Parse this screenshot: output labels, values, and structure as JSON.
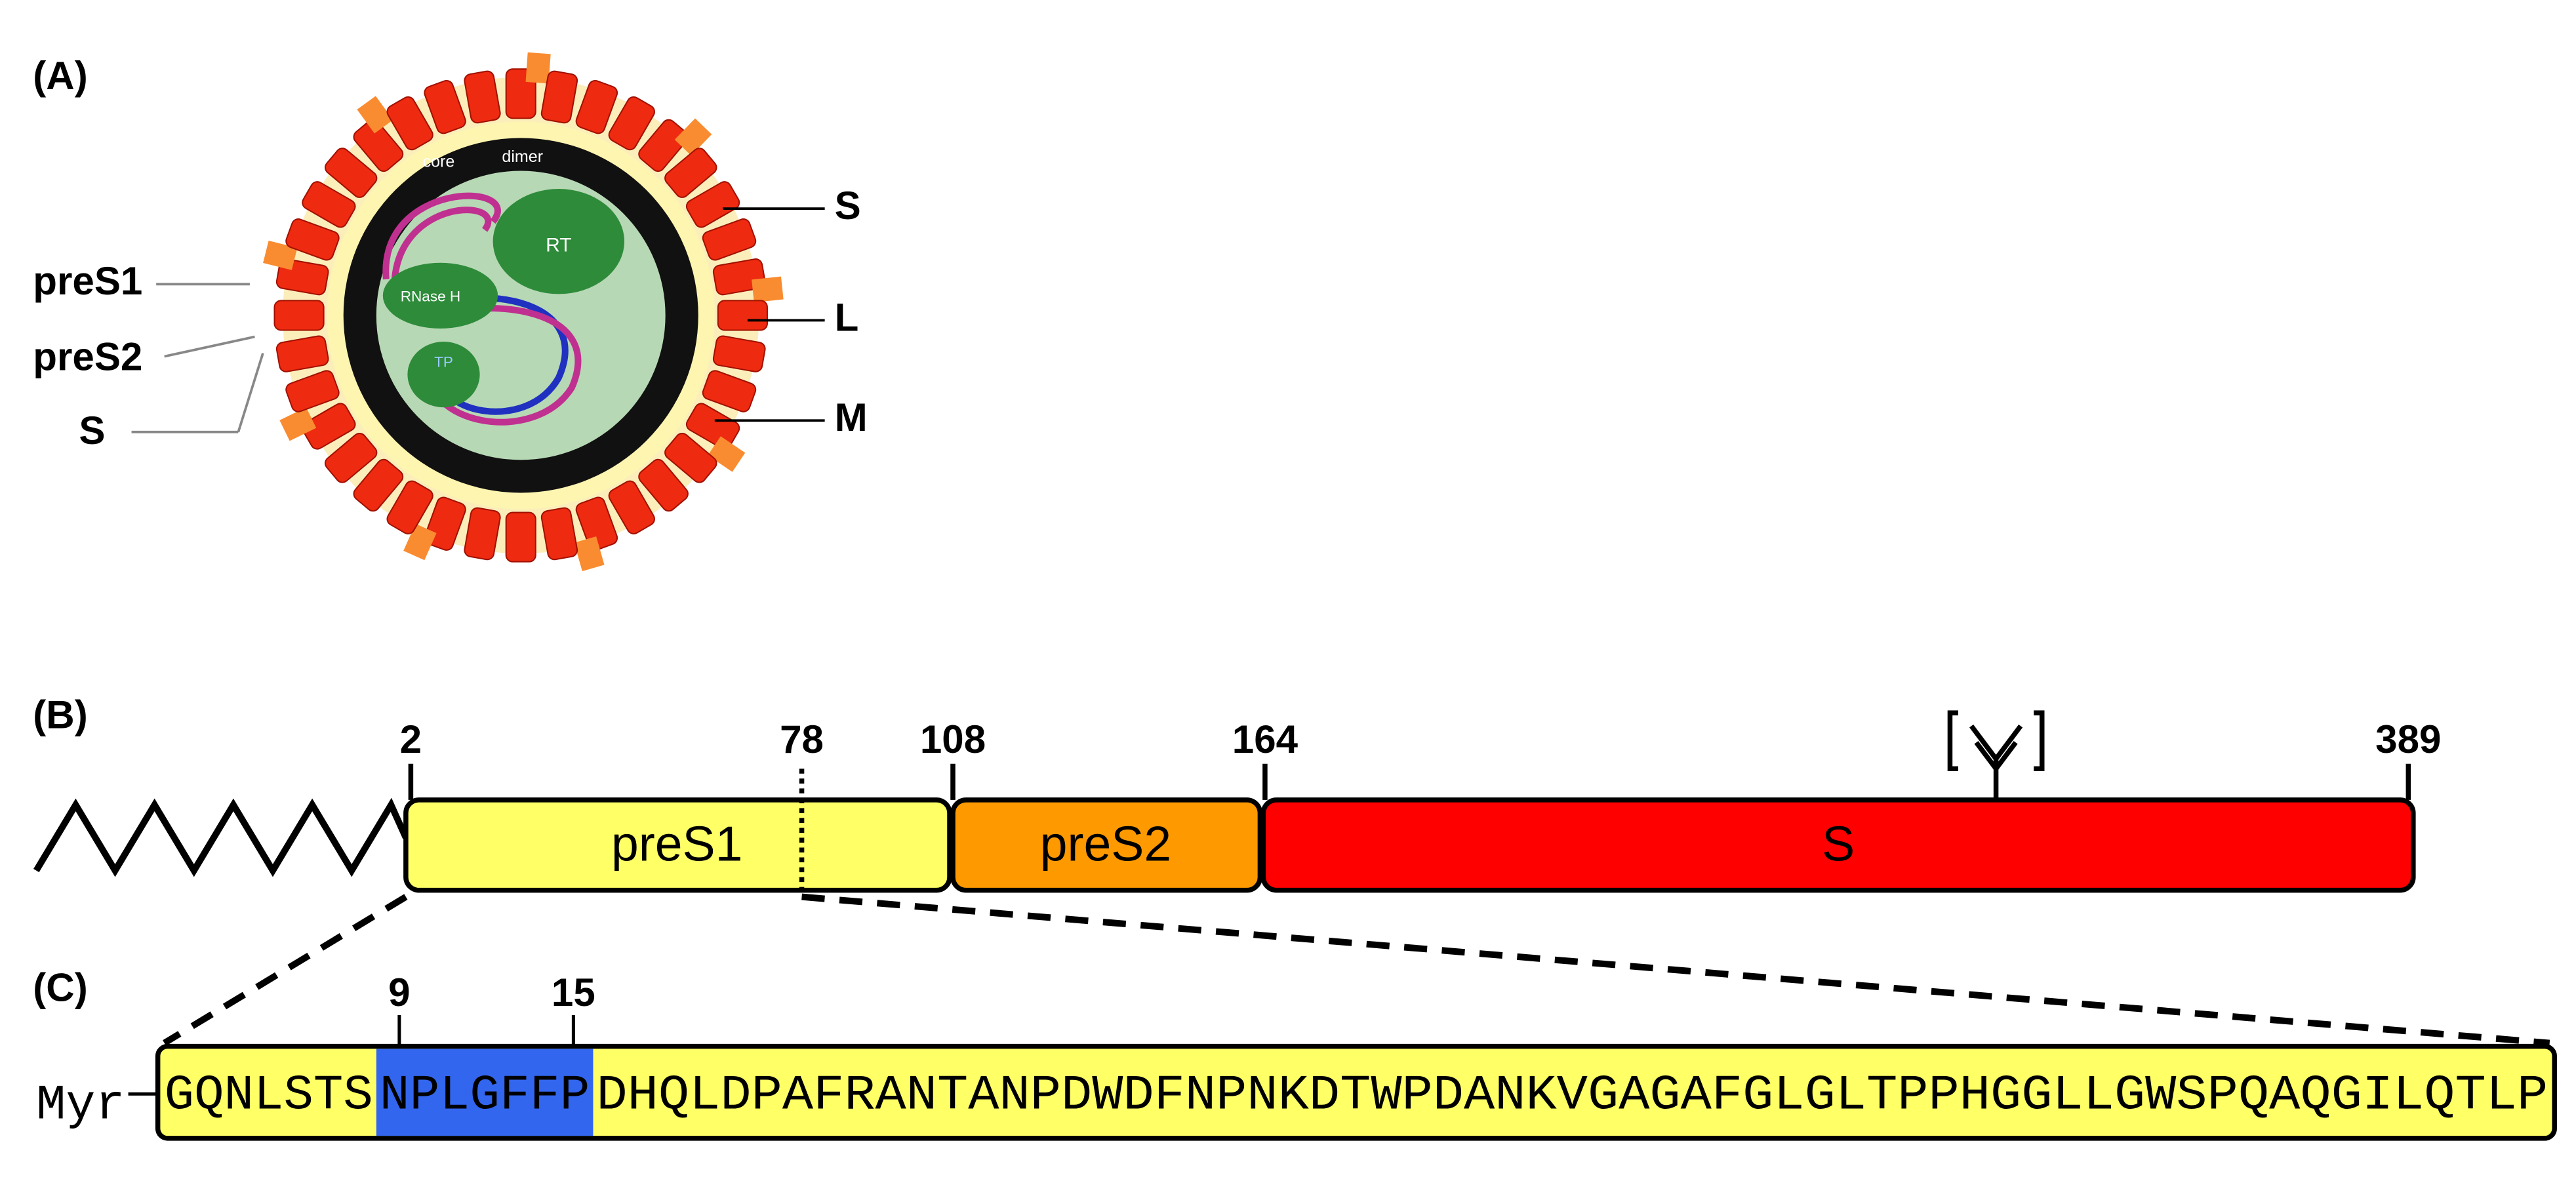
{
  "panels": {
    "a": "(A)",
    "b": "(B)",
    "c": "(C)"
  },
  "virion": {
    "right_labels": [
      "S",
      "L",
      "M"
    ],
    "left_labels": [
      "preS1",
      "preS2",
      "S"
    ],
    "inner_labels": [
      "core",
      "dimer",
      "RT",
      "RNase H",
      "TP"
    ]
  },
  "domains": {
    "positions": [
      2,
      78,
      108,
      164,
      389
    ],
    "segments": [
      "preS1",
      "preS2",
      "S"
    ]
  },
  "sequence": {
    "prefix": "Myr",
    "marks": [
      9,
      15
    ],
    "before": "GQNLSTS",
    "motif": "NPLGFFP",
    "after": "DHQLDPAFRANTANPDWDFNPNKDTWPDANKVGAGAFGLGLTPPHGGLLGWSPQAQGILQTLP"
  }
}
